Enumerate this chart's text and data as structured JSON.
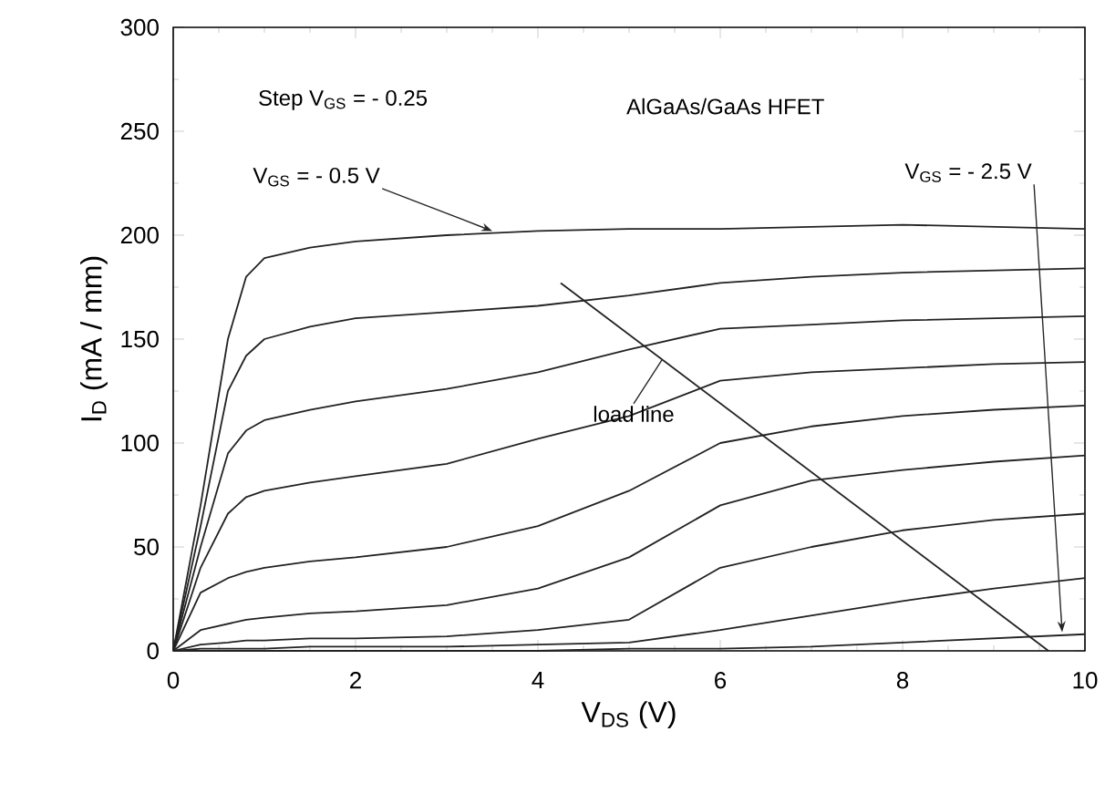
{
  "chart_data": {
    "type": "line",
    "xlabel": "V$_{DS}$ (V)",
    "ylabel": "I$_{D}$ (mA / mm)",
    "x": [
      0,
      0.3,
      0.6,
      0.8,
      1,
      1.5,
      2,
      3,
      4,
      5,
      6,
      7,
      8,
      9,
      10
    ],
    "series": [
      {
        "color": "#222222",
        "values": [
          0,
          70,
          150,
          180,
          189,
          194,
          197,
          200,
          202,
          203,
          203,
          204,
          205,
          204,
          203
        ]
      },
      {
        "color": "#222222",
        "values": [
          0,
          60,
          125,
          142,
          150,
          156,
          160,
          163,
          166,
          171,
          177,
          180,
          182,
          183,
          184
        ]
      },
      {
        "color": "#222222",
        "values": [
          0,
          50,
          95,
          106,
          111,
          116,
          120,
          126,
          134,
          145,
          155,
          157,
          159,
          160,
          161
        ]
      },
      {
        "color": "#222222",
        "values": [
          0,
          40,
          66,
          74,
          77,
          81,
          84,
          90,
          102,
          113,
          130,
          134,
          136,
          138,
          139
        ]
      },
      {
        "color": "#222222",
        "values": [
          0,
          28,
          35,
          38,
          40,
          43,
          45,
          50,
          60,
          77,
          100,
          108,
          113,
          116,
          118
        ]
      },
      {
        "color": "#222222",
        "values": [
          0,
          10,
          13,
          15,
          16,
          18,
          19,
          22,
          30,
          45,
          70,
          82,
          87,
          91,
          94
        ]
      },
      {
        "color": "#222222",
        "values": [
          0,
          3,
          4,
          5,
          5,
          6,
          6,
          7,
          10,
          15,
          40,
          50,
          58,
          63,
          66
        ]
      },
      {
        "color": "#222222",
        "values": [
          0,
          1,
          1,
          1,
          1,
          2,
          2,
          2,
          3,
          4,
          10,
          17,
          24,
          30,
          35
        ]
      },
      {
        "color": "#222222",
        "values": [
          0,
          0,
          0,
          0,
          0,
          0,
          0,
          0,
          0,
          1,
          1,
          2,
          4,
          6,
          8
        ]
      },
      {
        "color": "#222222",
        "type": "line",
        "x": [
          4.25,
          9.6
        ],
        "values": [
          177,
          0
        ]
      }
    ],
    "xlim": [
      0,
      10
    ],
    "ylim": [
      0,
      300
    ],
    "xticks": [
      0,
      2,
      4,
      6,
      8,
      10
    ],
    "yticks": [
      0,
      50,
      100,
      150,
      200,
      250,
      300
    ],
    "marker": "none",
    "line_style": "solid",
    "annotations": [
      "Step V$_{GS}$ = - 0.25",
      "AlGaAs/GaAs HFET",
      {
        "text": "V$_{GS}$ = - 0.5 V",
        "x": 3.5,
        "y": 202
      },
      {
        "text": "V$_{GS}$ = - 2.5 V",
        "x": 9.75,
        "y": 9
      },
      {
        "text": "load line",
        "x": 5.36,
        "y": 140
      }
    ]
  }
}
